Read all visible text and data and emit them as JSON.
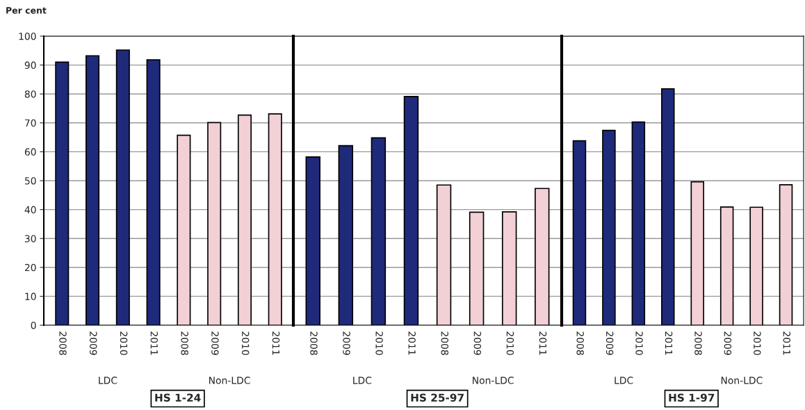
{
  "chart_data": [
    {
      "type": "bar",
      "ylabel": "Per cent",
      "categories": [
        "2008",
        "2009",
        "2010",
        "2011",
        "2008",
        "2009",
        "2010",
        "2011"
      ],
      "values": [
        91.0,
        93.2,
        95.2,
        91.8,
        65.7,
        70.1,
        72.7,
        73.1
      ],
      "colors": [
        "#1f2a7a",
        "#1f2a7a",
        "#1f2a7a",
        "#1f2a7a",
        "#f2d0d5",
        "#f2d0d5",
        "#f2d0d5",
        "#f2d0d5"
      ],
      "ylim": [
        0,
        100
      ],
      "yticks": [
        0,
        10,
        20,
        30,
        40,
        50,
        60,
        70,
        80,
        90,
        100
      ],
      "grid": "y",
      "legend": false,
      "annotations": [
        "LDC",
        "Non-LDC",
        "HS 1-24"
      ]
    },
    {
      "type": "bar",
      "categories": [
        "2008",
        "2009",
        "2010",
        "2011",
        "2008",
        "2009",
        "2010",
        "2011"
      ],
      "values": [
        58.2,
        62.1,
        64.8,
        79.1,
        48.5,
        39.1,
        39.2,
        47.3
      ],
      "colors": [
        "#1f2a7a",
        "#1f2a7a",
        "#1f2a7a",
        "#1f2a7a",
        "#f2d0d5",
        "#f2d0d5",
        "#f2d0d5",
        "#f2d0d5"
      ],
      "ylim": [
        0,
        100
      ],
      "yticks": [
        0,
        10,
        20,
        30,
        40,
        50,
        60,
        70,
        80,
        90,
        100
      ],
      "grid": "y",
      "legend": false,
      "tick_labels": "x",
      "annotations": [
        "LDC",
        "Non-LDC",
        "HS 25-97"
      ]
    },
    {
      "type": "bar",
      "categories": [
        "2008",
        "2009",
        "2010",
        "2011",
        "2008",
        "2009",
        "2010",
        "2011"
      ],
      "values": [
        63.8,
        67.4,
        70.3,
        81.8,
        49.6,
        40.9,
        40.8,
        48.6
      ],
      "colors": [
        "#1f2a7a",
        "#1f2a7a",
        "#1f2a7a",
        "#1f2a7a",
        "#f2d0d5",
        "#f2d0d5",
        "#f2d0d5",
        "#f2d0d5"
      ],
      "ylim": [
        0,
        100
      ],
      "yticks": [
        0,
        10,
        20,
        30,
        40,
        50,
        60,
        70,
        80,
        90,
        100
      ],
      "grid": "y",
      "legend": false,
      "tick_labels": "x",
      "annotations": [
        "LDC",
        "Non-LDC",
        "HS 1-97"
      ]
    }
  ]
}
